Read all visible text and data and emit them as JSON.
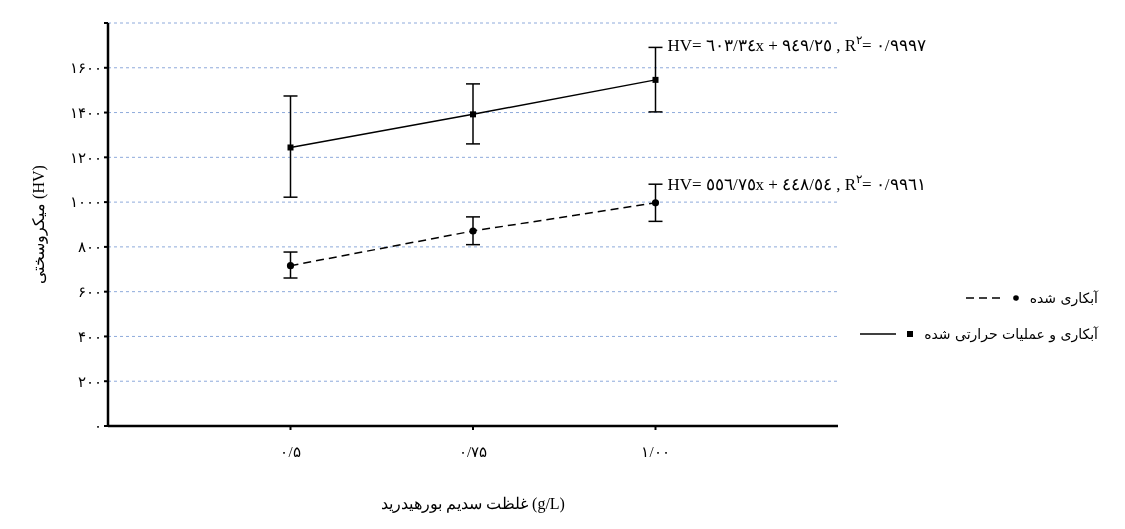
{
  "chart_data": {
    "type": "line",
    "xlabel": "غلظت سدیم بورهیدرید (g/L)",
    "ylabel": "میکروسختی  (HV)",
    "categories": [
      "۰/۵",
      "۰/۷۵",
      "۱/۰۰"
    ],
    "ylim": [
      0,
      1800
    ],
    "yticks": [
      {
        "value": 0,
        "label": "۰"
      },
      {
        "value": 200,
        "label": "۲۰۰"
      },
      {
        "value": 400,
        "label": "۴۰۰"
      },
      {
        "value": 600,
        "label": "۶۰۰"
      },
      {
        "value": 800,
        "label": "۸۰۰"
      },
      {
        "value": 1000,
        "label": "۱۰۰۰"
      },
      {
        "value": 1200,
        "label": "۱۲۰۰"
      },
      {
        "value": 1400,
        "label": "۱۴۰۰"
      },
      {
        "value": 1600,
        "label": "۱۶۰۰"
      },
      {
        "value": 1800,
        "label": null
      }
    ],
    "grid": "y",
    "legend": "right",
    "series": [
      {
        "name": "آبکاری شده",
        "color": "#000000",
        "values": [
          716,
          871,
          997
        ],
        "errors": [
          [
            661,
            777
          ],
          [
            810,
            934
          ],
          [
            914,
            1080
          ]
        ],
        "marker": "circle",
        "line_style": "dashed"
      },
      {
        "name": "آبکاری و عملیات حرارتی شده",
        "color": "#000000",
        "values": [
          1244,
          1392,
          1546
        ],
        "errors": [
          [
            1022,
            1474
          ],
          [
            1260,
            1528
          ],
          [
            1403,
            1691
          ]
        ],
        "marker": "square",
        "line_style": "solid"
      }
    ],
    "annotations": [
      {
        "text": "HV= ٦٠٣/٣٤x + ٩٤٩/٢٥  , R$^{٢}$= ٠/٩٩٩٧",
        "x": "۱/۰۰",
        "y": 1700
      },
      {
        "text": "HV= ٥٥٦/٧٥x + ٤٤٨/٥٤  , R$^{٢}$= ٠/٩٩٦١",
        "x": "۱/۰۰",
        "y": 1080
      }
    ]
  }
}
